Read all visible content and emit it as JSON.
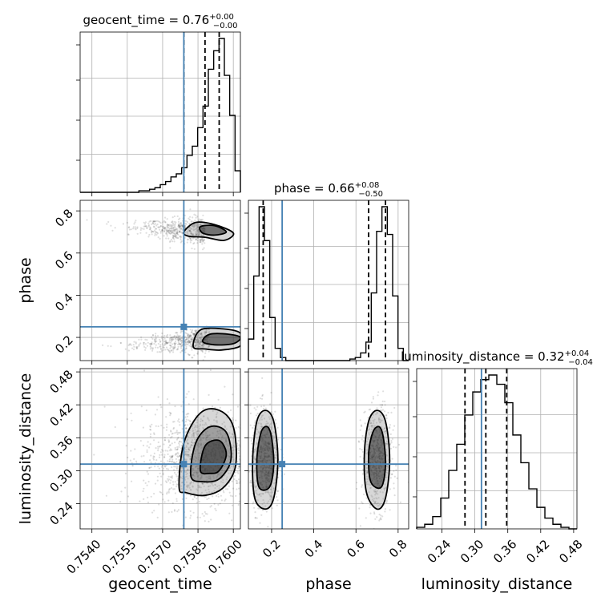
{
  "chart_data": {
    "type": "corner",
    "parameters": [
      "geocent_time",
      "phase",
      "luminosity_distance"
    ],
    "titles": [
      {
        "name": "geocent_time",
        "prefix": "geocent_time = ",
        "value": "0.76",
        "plus": "+0.00",
        "minus": "−0.00"
      },
      {
        "name": "phase",
        "prefix": "phase = ",
        "value": "0.66",
        "plus": "+0.08",
        "minus": "−0.50"
      },
      {
        "name": "luminosity_distance",
        "prefix": "luminosity_distance = ",
        "value": "0.32",
        "plus": "+0.04",
        "minus": "−0.04"
      }
    ],
    "axis_labels": {
      "x": [
        "geocent_time",
        "phase",
        "luminosity_distance"
      ],
      "y": [
        "phase",
        "luminosity_distance"
      ]
    },
    "ranges": {
      "geocent_time": [
        0.7535,
        0.7603
      ],
      "phase": [
        0.09,
        0.85
      ],
      "luminosity_distance": [
        0.194,
        0.486
      ]
    },
    "ticks": {
      "geocent_time": {
        "values": [
          0.754,
          0.7555,
          0.757,
          0.7585,
          0.76
        ],
        "labels": [
          "0.7540",
          "0.7555",
          "0.7570",
          "0.7585",
          "0.7600"
        ]
      },
      "phase": {
        "values": [
          0.2,
          0.4,
          0.6,
          0.8
        ],
        "labels": [
          "0.2",
          "0.4",
          "0.6",
          "0.8"
        ]
      },
      "luminosity_distance": {
        "values": [
          0.24,
          0.3,
          0.36,
          0.42,
          0.48
        ],
        "labels": [
          "0.24",
          "0.30",
          "0.36",
          "0.42",
          "0.48"
        ]
      }
    },
    "truths": {
      "geocent_time": 0.7579,
      "phase": 0.25,
      "luminosity_distance": 0.312
    },
    "quantiles": {
      "geocent_time": [
        0.7579,
        0.7588,
        0.7594
      ],
      "phase": [
        0.16,
        0.66,
        0.74
      ],
      "luminosity_distance": [
        0.282,
        0.32,
        0.358
      ]
    },
    "histograms": {
      "geocent_time": {
        "edges_range": [
          0.7535,
          0.7603
        ],
        "counts": [
          0,
          0,
          0,
          0,
          0,
          0,
          0,
          0,
          0,
          0,
          0,
          0.01,
          0.01,
          0.02,
          0.03,
          0.05,
          0.07,
          0.1,
          0.12,
          0.16,
          0.24,
          0.3,
          0.42,
          0.56,
          0.8,
          0.92,
          1.0,
          0.76,
          0.5,
          0.14
        ]
      },
      "phase": {
        "edges_range": [
          0.09,
          0.85
        ],
        "counts": [
          0.14,
          0.55,
          1.0,
          0.78,
          0.28,
          0.08,
          0.02,
          0,
          0,
          0,
          0,
          0,
          0,
          0,
          0,
          0,
          0,
          0,
          0,
          0.01,
          0.02,
          0.05,
          0.12,
          0.44,
          0.84,
          1.0,
          0.82,
          0.42,
          0.08,
          0
        ]
      },
      "luminosity_distance": {
        "edges_range": [
          0.194,
          0.486
        ],
        "counts": [
          0.01,
          0.03,
          0.08,
          0.2,
          0.38,
          0.55,
          0.74,
          0.89,
          0.97,
          1.0,
          0.94,
          0.82,
          0.61,
          0.43,
          0.26,
          0.14,
          0.07,
          0.03,
          0.01,
          0
        ]
      }
    },
    "contours_2d": {
      "phase_vs_geocent_time": [
        {
          "points": [
            [
              0.7579,
              0.7
            ],
            [
              0.7584,
              0.745
            ],
            [
              0.7592,
              0.735
            ],
            [
              0.76,
              0.695
            ],
            [
              0.7596,
              0.66
            ],
            [
              0.7588,
              0.675
            ],
            [
              0.7581,
              0.68
            ]
          ],
          "level": "outer"
        },
        {
          "points": [
            [
              0.7586,
              0.725
            ],
            [
              0.7592,
              0.73
            ],
            [
              0.7597,
              0.7
            ],
            [
              0.7592,
              0.685
            ],
            [
              0.7587,
              0.695
            ]
          ],
          "level": "inner"
        },
        {
          "points": [
            [
              0.7583,
              0.155
            ],
            [
              0.7586,
              0.235
            ],
            [
              0.7596,
              0.24
            ],
            [
              0.7603,
              0.22
            ],
            [
              0.7603,
              0.16
            ],
            [
              0.7595,
              0.14
            ],
            [
              0.7588,
              0.145
            ]
          ],
          "level": "outer"
        },
        {
          "points": [
            [
              0.7587,
              0.18
            ],
            [
              0.759,
              0.215
            ],
            [
              0.7598,
              0.215
            ],
            [
              0.7603,
              0.2
            ],
            [
              0.76,
              0.17
            ],
            [
              0.7592,
              0.165
            ]
          ],
          "level": "inner"
        }
      ],
      "luminosity_distance_vs_geocent_time": [
        {
          "points": [
            [
              0.7577,
              0.27
            ],
            [
              0.7579,
              0.35
            ],
            [
              0.7586,
              0.405
            ],
            [
              0.7594,
              0.41
            ],
            [
              0.76,
              0.38
            ],
            [
              0.7601,
              0.31
            ],
            [
              0.7596,
              0.27
            ],
            [
              0.7588,
              0.255
            ],
            [
              0.758,
              0.26
            ]
          ],
          "level": "outer"
        },
        {
          "points": [
            [
              0.7582,
              0.29
            ],
            [
              0.7584,
              0.35
            ],
            [
              0.759,
              0.38
            ],
            [
              0.7597,
              0.37
            ],
            [
              0.7599,
              0.32
            ],
            [
              0.7594,
              0.285
            ],
            [
              0.7587,
              0.28
            ]
          ],
          "level": "mid"
        },
        {
          "points": [
            [
              0.7586,
              0.3
            ],
            [
              0.7588,
              0.345
            ],
            [
              0.7594,
              0.355
            ],
            [
              0.7597,
              0.33
            ],
            [
              0.7594,
              0.3
            ],
            [
              0.759,
              0.295
            ]
          ],
          "level": "inner"
        }
      ],
      "luminosity_distance_vs_phase": [
        {
          "points": [
            [
              0.12,
              0.25
            ],
            [
              0.11,
              0.32
            ],
            [
              0.13,
              0.39
            ],
            [
              0.17,
              0.41
            ],
            [
              0.21,
              0.39
            ],
            [
              0.23,
              0.32
            ],
            [
              0.21,
              0.25
            ],
            [
              0.17,
              0.23
            ]
          ],
          "level": "outer"
        },
        {
          "points": [
            [
              0.14,
              0.27
            ],
            [
              0.13,
              0.32
            ],
            [
              0.15,
              0.37
            ],
            [
              0.18,
              0.38
            ],
            [
              0.2,
              0.36
            ],
            [
              0.21,
              0.31
            ],
            [
              0.19,
              0.27
            ]
          ],
          "level": "inner"
        },
        {
          "points": [
            [
              0.65,
              0.26
            ],
            [
              0.64,
              0.33
            ],
            [
              0.66,
              0.39
            ],
            [
              0.7,
              0.41
            ],
            [
              0.74,
              0.39
            ],
            [
              0.76,
              0.32
            ],
            [
              0.74,
              0.25
            ],
            [
              0.7,
              0.23
            ]
          ],
          "level": "outer"
        },
        {
          "points": [
            [
              0.67,
              0.28
            ],
            [
              0.66,
              0.33
            ],
            [
              0.68,
              0.37
            ],
            [
              0.71,
              0.38
            ],
            [
              0.73,
              0.36
            ],
            [
              0.74,
              0.31
            ],
            [
              0.72,
              0.27
            ]
          ],
          "level": "inner"
        }
      ]
    },
    "colors": {
      "line": "#000000",
      "truth": "#4682b4",
      "grid": "#b0b0b0",
      "scatter": "#000000"
    }
  }
}
